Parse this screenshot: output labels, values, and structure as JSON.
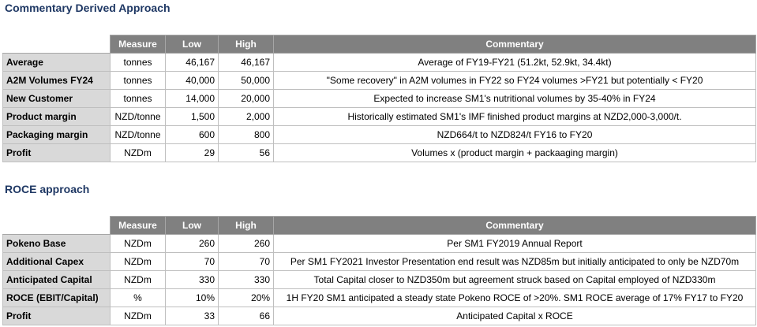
{
  "section1": {
    "title": "Commentary Derived Approach",
    "headers": {
      "measure": "Measure",
      "low": "Low",
      "high": "High",
      "commentary": "Commentary"
    },
    "rows": [
      {
        "label": "Average",
        "measure": "tonnes",
        "low": "46,167",
        "high": "46,167",
        "commentary": "Average of FY19-FY21 (51.2kt, 52.9kt, 34.4kt)"
      },
      {
        "label": "A2M Volumes FY24",
        "measure": "tonnes",
        "low": "40,000",
        "high": "50,000",
        "commentary": "\"Some recovery\" in A2M volumes in FY22 so FY24 volumes >FY21 but potentially < FY20"
      },
      {
        "label": "New Customer",
        "measure": "tonnes",
        "low": "14,000",
        "high": "20,000",
        "commentary": "Expected to increase SM1's nutritional volumes by 35-40% in FY24"
      },
      {
        "label": "Product margin",
        "measure": "NZD/tonne",
        "low": "1,500",
        "high": "2,000",
        "commentary": "Historically estimated SM1's IMF finished product margins at NZD2,000-3,000/t."
      },
      {
        "label": "Packaging margin",
        "measure": "NZD/tonne",
        "low": "600",
        "high": "800",
        "commentary": "NZD664/t to NZD824/t FY16 to FY20"
      },
      {
        "label": "Profit",
        "measure": "NZDm",
        "low": "29",
        "high": "56",
        "commentary": "Volumes x (product margin + packaaging margin)"
      }
    ]
  },
  "section2": {
    "title": "ROCE approach",
    "headers": {
      "measure": "Measure",
      "low": "Low",
      "high": "High",
      "commentary": "Commentary"
    },
    "rows": [
      {
        "label": "Pokeno Base",
        "measure": "NZDm",
        "low": "260",
        "high": "260",
        "commentary": "Per SM1 FY2019 Annual Report"
      },
      {
        "label": "Additional Capex",
        "measure": "NZDm",
        "low": "70",
        "high": "70",
        "commentary": "Per SM1 FY2021 Investor Presentation end result was NZD85m but initially anticipated to only be NZD70m"
      },
      {
        "label": "Anticipated Capital",
        "measure": "NZDm",
        "low": "330",
        "high": "330",
        "commentary": "Total Capital closer to NZD350m but agreement struck based on Capital employed of NZD330m"
      },
      {
        "label": "ROCE (EBIT/Capital)",
        "measure": "%",
        "low": "10%",
        "high": "20%",
        "commentary": "1H FY20 SM1 anticipated a steady state Pokeno ROCE of >20%. SM1 ROCE average of 17% FY17 to FY20"
      },
      {
        "label": "Profit",
        "measure": "NZDm",
        "low": "33",
        "high": "66",
        "commentary": "Anticipated Capital x ROCE"
      }
    ]
  }
}
